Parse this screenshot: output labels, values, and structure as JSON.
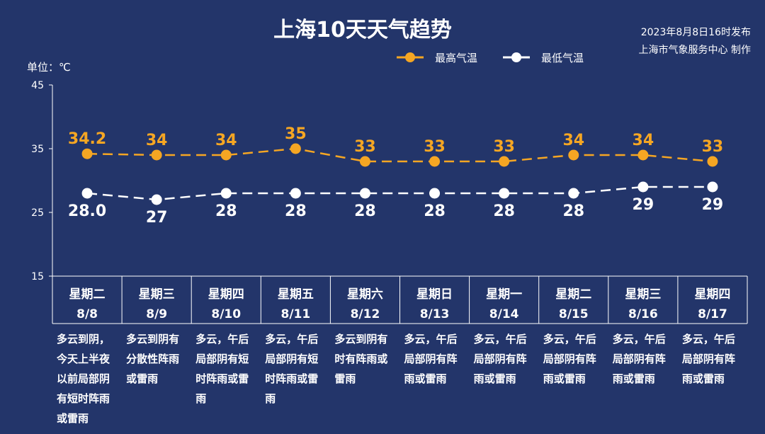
{
  "header": {
    "title": "上海10天天气趋势",
    "publish_time": "2023年8月8日16时发布",
    "producer": "上海市气象服务中心 制作"
  },
  "colors": {
    "background": "#23356a",
    "high": "#f5a623",
    "low": "#ffffff"
  },
  "chart_data": {
    "type": "line",
    "title": "上海10天天气趋势",
    "ylabel": "单位：℃",
    "ylim": [
      15,
      45
    ],
    "yticks": [
      "45",
      "35",
      "25",
      "15"
    ],
    "grid": false,
    "legend_position": "top-right",
    "categories": [
      {
        "weekday": "星期二",
        "date": "8/8"
      },
      {
        "weekday": "星期三",
        "date": "8/9"
      },
      {
        "weekday": "星期四",
        "date": "8/10"
      },
      {
        "weekday": "星期五",
        "date": "8/11"
      },
      {
        "weekday": "星期六",
        "date": "8/12"
      },
      {
        "weekday": "星期日",
        "date": "8/13"
      },
      {
        "weekday": "星期一",
        "date": "8/14"
      },
      {
        "weekday": "星期二",
        "date": "8/15"
      },
      {
        "weekday": "星期三",
        "date": "8/16"
      },
      {
        "weekday": "星期四",
        "date": "8/17"
      }
    ],
    "series": [
      {
        "name": "最高气温",
        "color": "#f5a623",
        "values": [
          34.2,
          34,
          34,
          35,
          33,
          33,
          33,
          34,
          34,
          33
        ],
        "labels": [
          "34.2",
          "34",
          "34",
          "35",
          "33",
          "33",
          "33",
          "34",
          "34",
          "33"
        ]
      },
      {
        "name": "最低气温",
        "color": "#ffffff",
        "values": [
          28.0,
          27,
          28,
          28,
          28,
          28,
          28,
          28,
          29,
          29
        ],
        "labels": [
          "28.0",
          "27",
          "28",
          "28",
          "28",
          "28",
          "28",
          "28",
          "29",
          "29"
        ]
      }
    ],
    "descriptions": [
      [
        "多云到阴，",
        "今天上半夜",
        "以前局部阴",
        "有短时阵雨",
        "或雷雨"
      ],
      [
        "多云到阴有",
        "分散性阵雨",
        "或雷雨"
      ],
      [
        "多云，午后",
        "局部阴有短",
        "时阵雨或雷",
        "雨"
      ],
      [
        "多云，午后",
        "局部阴有短",
        "时阵雨或雷",
        "雨"
      ],
      [
        "多云到阴有",
        "时有阵雨或",
        "雷雨"
      ],
      [
        "多云，午后",
        "局部阴有阵",
        "雨或雷雨"
      ],
      [
        "多云，午后",
        "局部阴有阵",
        "雨或雷雨"
      ],
      [
        "多云，午后",
        "局部阴有阵",
        "雨或雷雨"
      ],
      [
        "多云，午后",
        "局部阴有阵",
        "雨或雷雨"
      ],
      [
        "多云，午后",
        "局部阴有阵",
        "雨或雷雨"
      ]
    ]
  }
}
